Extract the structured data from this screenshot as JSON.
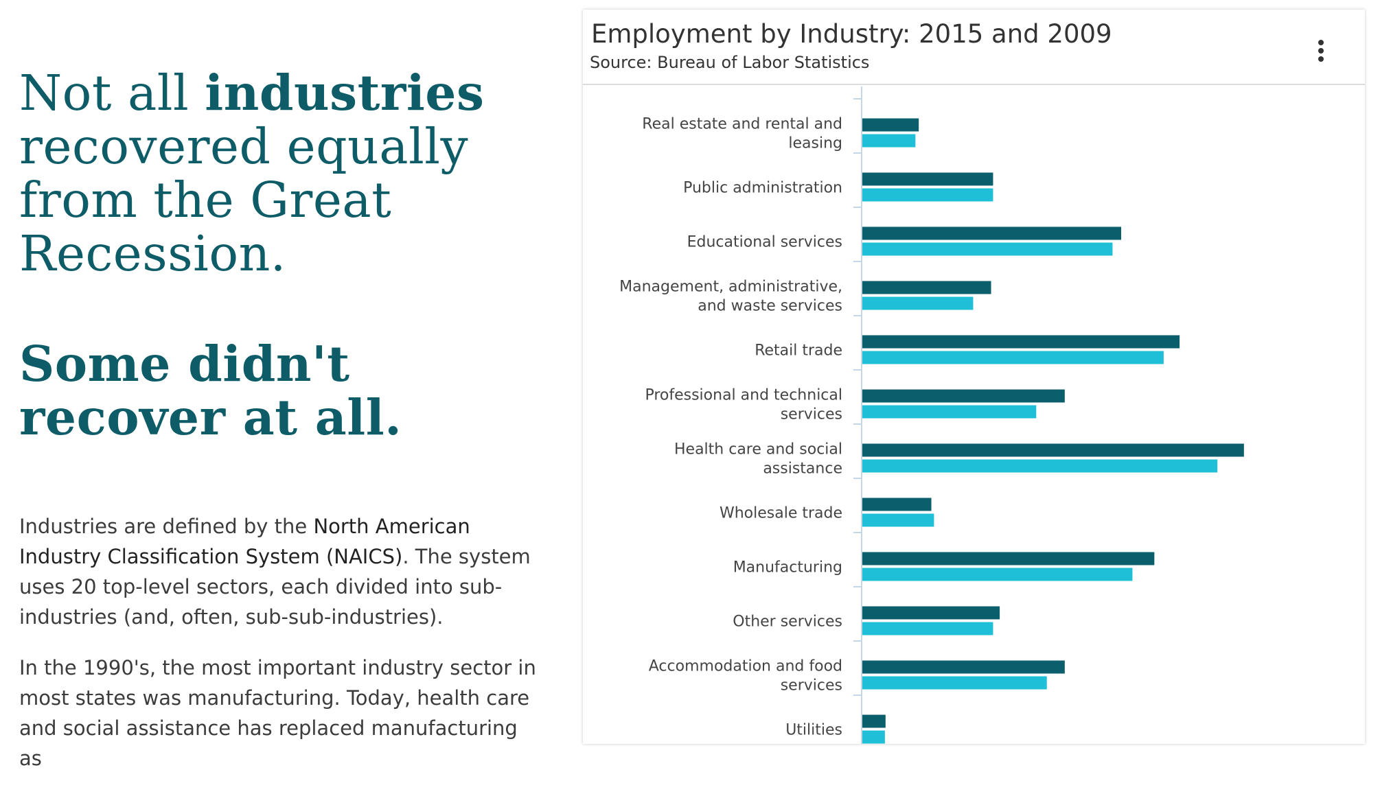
{
  "article": {
    "headline_1": "Not all",
    "headline_1_bold": "industries",
    "headline_1_rest": "recovered equally from the Great Recession.",
    "headline_2": "Some didn't recover at all.",
    "p1_a": "Industries are defined by the",
    "p1_bold": "North American Industry Classification System (NAICS)",
    "p1_b": ". The system uses 20 top-level sectors, each divided into sub-industries (and, often, sub-sub-industries).",
    "p2": "In the 1990's, the most important industry sector in most states was manufacturing. Today, health care and social assistance has replaced manufacturing as"
  },
  "card": {
    "title": "Employment by Industry: 2015 and 2009",
    "subtitle": "Source: Bureau of Labor Statistics",
    "menu_icon": "more-vertical-icon"
  },
  "colors": {
    "headline": "#0d5c67",
    "series_2015": "#0b5e6b",
    "series_2009": "#1ebfd7",
    "axis": "#c5d6e6"
  },
  "chart_data": {
    "type": "bar",
    "orientation": "horizontal",
    "title": "Employment by Industry: 2015 and 2009",
    "subtitle": "Source: Bureau of Labor Statistics",
    "categories": [
      "Real estate and rental and leasing",
      "Public administration",
      "Educational services",
      "Management, administrative, and waste services",
      "Retail trade",
      "Professional and technical services",
      "Health care and social assistance",
      "Wholesale trade",
      "Manufacturing",
      "Other services",
      "Accommodation and food services",
      "Utilities"
    ],
    "category_lines": [
      [
        "Real estate and rental and",
        "leasing"
      ],
      [
        "Public administration"
      ],
      [
        "Educational services"
      ],
      [
        "Management, administrative,",
        "and waste services"
      ],
      [
        "Retail trade"
      ],
      [
        "Professional and technical",
        "services"
      ],
      [
        "Health care and social",
        "assistance"
      ],
      [
        "Wholesale trade"
      ],
      [
        "Manufacturing"
      ],
      [
        "Other services"
      ],
      [
        "Accommodation and food",
        "services"
      ],
      [
        "Utilities"
      ]
    ],
    "series": [
      {
        "color": "#0b5e6b",
        "values": [
          85,
          197,
          390,
          194,
          478,
          305,
          575,
          104,
          440,
          207,
          305,
          35
        ]
      },
      {
        "color": "#1ebfd7",
        "values": [
          80,
          197,
          377,
          167,
          454,
          262,
          535,
          108,
          407,
          197,
          278,
          34
        ]
      }
    ],
    "xlim": [
      0,
      600
    ],
    "grid": false,
    "legend": "none"
  }
}
